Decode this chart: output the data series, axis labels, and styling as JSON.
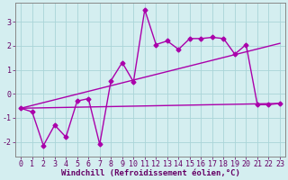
{
  "x_values": [
    0,
    1,
    2,
    3,
    4,
    5,
    6,
    7,
    8,
    9,
    10,
    11,
    12,
    13,
    14,
    15,
    16,
    17,
    18,
    19,
    20,
    21,
    22,
    23
  ],
  "y_main": [
    -0.6,
    -0.75,
    -2.15,
    -1.3,
    -1.8,
    -0.3,
    -0.2,
    -2.1,
    0.55,
    1.3,
    0.5,
    3.5,
    2.05,
    2.2,
    1.85,
    2.3,
    2.3,
    2.35,
    2.3,
    1.65,
    2.05,
    -0.45,
    -0.45,
    -0.4
  ],
  "y_upper_start": -0.6,
  "y_upper_end": 2.1,
  "y_lower_start": -0.6,
  "y_lower_end": -0.4,
  "x_start": 0,
  "x_end": 23,
  "line_color": "#aa00aa",
  "bg_color": "#d4eef0",
  "grid_color": "#aad4d8",
  "text_color": "#660066",
  "xlabel": "Windchill (Refroidissement éolien,°C)",
  "ylim": [
    -2.6,
    3.8
  ],
  "xlim": [
    -0.5,
    23.5
  ],
  "yticks": [
    -2,
    -1,
    0,
    1,
    2,
    3
  ],
  "xticks": [
    0,
    1,
    2,
    3,
    4,
    5,
    6,
    7,
    8,
    9,
    10,
    11,
    12,
    13,
    14,
    15,
    16,
    17,
    18,
    19,
    20,
    21,
    22,
    23
  ],
  "marker": "D",
  "markersize": 2.5,
  "linewidth": 1.0,
  "xlabel_fontsize": 6.5,
  "tick_fontsize": 6.0
}
